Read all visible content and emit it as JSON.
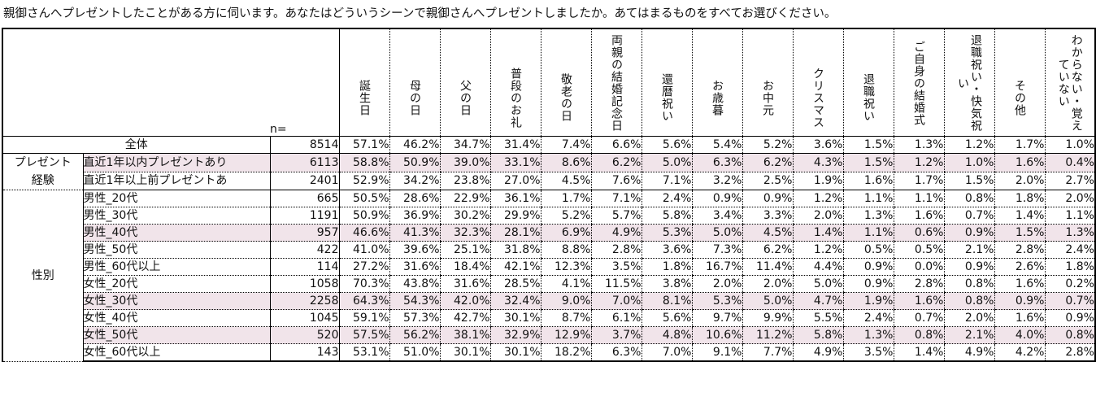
{
  "question": "親御さんへプレゼントしたことがある方に伺います。あなたはどういうシーンで親御さんへプレゼントしましたか。あてはまるものをすべてお選びください。",
  "n_label": "n=",
  "colors": {
    "shade": "#f1e4ea",
    "border": "#000000"
  },
  "chart_data": {
    "type": "table",
    "columns": [
      "誕生日",
      "母の日",
      "父の日",
      "普段のお礼",
      "敬老の日",
      "両親の結婚記念日",
      "還暦祝い",
      "お歳暮",
      "お中元",
      "クリスマス",
      "退職祝い",
      "ご自身の結婚式",
      "退職祝い・快気祝い",
      "その他",
      "わからない・覚えていない"
    ],
    "rows": [
      {
        "group": "",
        "label": "全体",
        "n": "8514",
        "values": [
          "57.1%",
          "46.2%",
          "34.7%",
          "31.4%",
          "7.4%",
          "6.6%",
          "5.6%",
          "5.4%",
          "5.2%",
          "3.6%",
          "1.5%",
          "1.3%",
          "1.2%",
          "1.7%",
          "1.0%"
        ]
      },
      {
        "group": "プレゼント経験",
        "label": "直近1年以内プレゼントあり",
        "n": "6113",
        "values": [
          "58.8%",
          "50.9%",
          "39.0%",
          "33.1%",
          "8.6%",
          "6.2%",
          "5.0%",
          "6.3%",
          "6.2%",
          "4.3%",
          "1.5%",
          "1.2%",
          "1.0%",
          "1.6%",
          "0.4%"
        ]
      },
      {
        "group": "プレゼント経験",
        "label": "直近1年以上前プレゼントあ",
        "n": "2401",
        "values": [
          "52.9%",
          "34.2%",
          "23.8%",
          "27.0%",
          "4.5%",
          "7.6%",
          "7.1%",
          "3.2%",
          "2.5%",
          "1.9%",
          "1.6%",
          "1.7%",
          "1.5%",
          "2.0%",
          "2.7%"
        ]
      },
      {
        "group": "性別",
        "label": "男性_20代",
        "n": "665",
        "values": [
          "50.5%",
          "28.6%",
          "22.9%",
          "36.1%",
          "1.7%",
          "7.1%",
          "2.4%",
          "0.9%",
          "0.9%",
          "1.2%",
          "1.1%",
          "1.1%",
          "0.8%",
          "1.8%",
          "2.0%"
        ]
      },
      {
        "group": "性別",
        "label": "男性_30代",
        "n": "1191",
        "values": [
          "50.9%",
          "36.9%",
          "30.2%",
          "29.9%",
          "5.2%",
          "5.7%",
          "5.8%",
          "3.4%",
          "3.3%",
          "2.0%",
          "1.3%",
          "1.6%",
          "0.7%",
          "1.4%",
          "1.1%"
        ]
      },
      {
        "group": "性別",
        "label": "男性_40代",
        "n": "957",
        "values": [
          "46.6%",
          "41.3%",
          "32.3%",
          "28.1%",
          "6.9%",
          "4.9%",
          "5.3%",
          "5.0%",
          "4.5%",
          "1.4%",
          "1.1%",
          "0.6%",
          "0.9%",
          "1.5%",
          "1.3%"
        ]
      },
      {
        "group": "性別",
        "label": "男性_50代",
        "n": "422",
        "values": [
          "41.0%",
          "39.6%",
          "25.1%",
          "31.8%",
          "8.8%",
          "2.8%",
          "3.6%",
          "7.3%",
          "6.2%",
          "1.2%",
          "0.5%",
          "0.5%",
          "2.1%",
          "2.8%",
          "2.4%"
        ]
      },
      {
        "group": "性別",
        "label": "男性_60代以上",
        "n": "114",
        "values": [
          "27.2%",
          "31.6%",
          "18.4%",
          "42.1%",
          "12.3%",
          "3.5%",
          "1.8%",
          "16.7%",
          "11.4%",
          "4.4%",
          "0.9%",
          "0.0%",
          "0.9%",
          "2.6%",
          "1.8%"
        ]
      },
      {
        "group": "性別",
        "label": "女性_20代",
        "n": "1058",
        "values": [
          "70.3%",
          "43.8%",
          "31.6%",
          "28.5%",
          "4.1%",
          "11.5%",
          "3.8%",
          "2.0%",
          "2.0%",
          "5.0%",
          "0.9%",
          "2.8%",
          "0.8%",
          "1.6%",
          "0.2%"
        ]
      },
      {
        "group": "性別",
        "label": "女性_30代",
        "n": "2258",
        "values": [
          "64.3%",
          "54.3%",
          "42.0%",
          "32.4%",
          "9.0%",
          "7.0%",
          "8.1%",
          "5.3%",
          "5.0%",
          "4.7%",
          "1.9%",
          "1.6%",
          "0.8%",
          "0.9%",
          "0.7%"
        ]
      },
      {
        "group": "性別",
        "label": "女性_40代",
        "n": "1045",
        "values": [
          "59.1%",
          "57.3%",
          "42.7%",
          "30.1%",
          "8.7%",
          "6.1%",
          "5.6%",
          "9.7%",
          "9.9%",
          "5.5%",
          "2.4%",
          "0.7%",
          "2.0%",
          "1.6%",
          "0.9%"
        ]
      },
      {
        "group": "性別",
        "label": "女性_50代",
        "n": "520",
        "values": [
          "57.5%",
          "56.2%",
          "38.1%",
          "32.9%",
          "12.9%",
          "3.7%",
          "4.8%",
          "10.6%",
          "11.2%",
          "5.8%",
          "1.3%",
          "0.8%",
          "2.1%",
          "4.0%",
          "0.8%"
        ]
      },
      {
        "group": "性別",
        "label": "女性_60代以上",
        "n": "143",
        "values": [
          "53.1%",
          "51.0%",
          "30.1%",
          "30.1%",
          "18.2%",
          "6.3%",
          "7.0%",
          "9.1%",
          "7.7%",
          "4.9%",
          "3.5%",
          "1.4%",
          "4.9%",
          "4.2%",
          "2.8%"
        ]
      }
    ],
    "shaded_rows": [
      1,
      5,
      9,
      11
    ]
  }
}
